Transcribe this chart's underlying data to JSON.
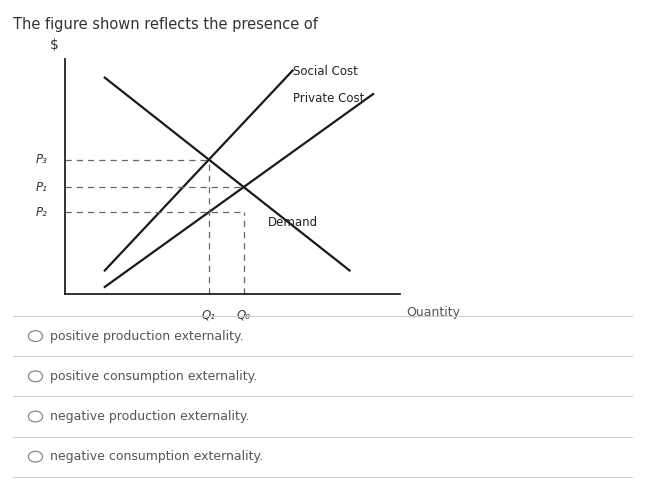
{
  "title": "The figure shown reflects the presence of",
  "xlabel": "Quantity",
  "ylabel": "$",
  "line_color": "#1a1a1a",
  "dashed_color": "#666666",
  "social_cost_label": "Social Cost",
  "private_cost_label": "Private Cost",
  "demand_label": "Demand",
  "price_labels": [
    "P₃",
    "P₂",
    "P₁"
  ],
  "qty_labels": [
    "Q₁",
    "Q₀"
  ],
  "options": [
    "positive production externality.",
    "positive consumption externality.",
    "negative production externality.",
    "negative consumption externality."
  ]
}
